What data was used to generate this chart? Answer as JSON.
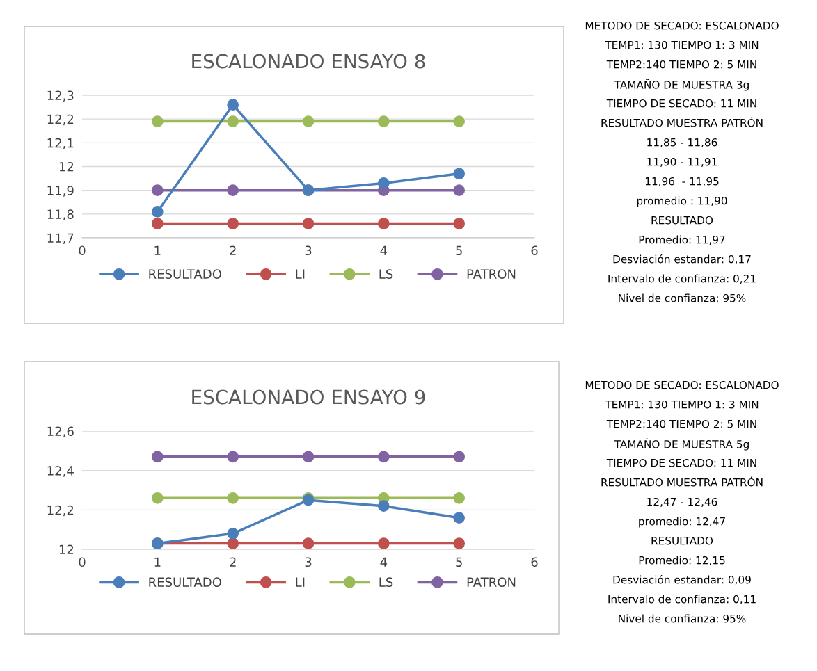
{
  "chart_data": [
    {
      "type": "line",
      "title": "ESCALONADO ENSAYO 8",
      "x": [
        1,
        2,
        3,
        4,
        5
      ],
      "xlim": [
        0,
        6
      ],
      "xticks": [
        0,
        1,
        2,
        3,
        4,
        5,
        6
      ],
      "ylim": [
        11.7,
        12.3
      ],
      "yticks": [
        {
          "value": 11.7,
          "label": "11,7"
        },
        {
          "value": 11.8,
          "label": "11,8"
        },
        {
          "value": 11.9,
          "label": "11,9"
        },
        {
          "value": 12,
          "label": "12"
        },
        {
          "value": 12.1,
          "label": "12,1"
        },
        {
          "value": 12.2,
          "label": "12,2"
        },
        {
          "value": 12.3,
          "label": "12,3"
        }
      ],
      "grid": "y",
      "legend": "bottom",
      "marker": "circle",
      "line_style": "solid",
      "series": [
        {
          "name": "RESULTADO",
          "color": "#4a7ebb",
          "values": [
            11.81,
            12.26,
            11.9,
            11.93,
            11.97
          ]
        },
        {
          "name": "LI",
          "color": "#c0504d",
          "values": [
            11.76,
            11.76,
            11.76,
            11.76,
            11.76
          ]
        },
        {
          "name": "LS",
          "color": "#9bbb59",
          "values": [
            12.19,
            12.19,
            12.19,
            12.19,
            12.19
          ]
        },
        {
          "name": "PATRON",
          "color": "#8064a2",
          "values": [
            11.9,
            11.9,
            11.9,
            11.9,
            11.9
          ]
        }
      ]
    },
    {
      "type": "other",
      "annotations": [
        "METODO DE SECADO: ESCALONADO",
        "TEMP1: 130 TIEMPO 1: 3 MIN",
        "TEMP2:140 TIEMPO 2: 5 MIN",
        "TAMAÑO DE MUESTRA 3g",
        "TIEMPO DE SECADO: 11 MIN",
        "RESULTADO MUESTRA PATRÓN",
        "11,85 - 11,86",
        "11,90 - 11,91",
        "11,96  - 11,95",
        "promedio : 11,90",
        "RESULTADO",
        "Promedio: 11,97",
        "Desviación estandar: 0,17",
        "Intervalo de confianza: 0,21",
        "Nivel de confianza: 95%"
      ]
    },
    {
      "type": "line",
      "title": "ESCALONADO ENSAYO 9",
      "x": [
        1,
        2,
        3,
        4,
        5
      ],
      "xlim": [
        0,
        6
      ],
      "xticks": [
        0,
        1,
        2,
        3,
        4,
        5,
        6
      ],
      "ylim": [
        12,
        12.6
      ],
      "yticks": [
        {
          "value": 12,
          "label": "12"
        },
        {
          "value": 12.2,
          "label": "12,2"
        },
        {
          "value": 12.4,
          "label": "12,4"
        },
        {
          "value": 12.6,
          "label": "12,6"
        }
      ],
      "grid": "y",
      "legend": "bottom",
      "marker": "circle",
      "line_style": "solid",
      "series": [
        {
          "name": "RESULTADO",
          "color": "#4a7ebb",
          "values": [
            12.03,
            12.08,
            12.25,
            12.22,
            12.16
          ]
        },
        {
          "name": "LI",
          "color": "#c0504d",
          "values": [
            12.03,
            12.03,
            12.03,
            12.03,
            12.03
          ]
        },
        {
          "name": "LS",
          "color": "#9bbb59",
          "values": [
            12.26,
            12.26,
            12.26,
            12.26,
            12.26
          ]
        },
        {
          "name": "PATRON",
          "color": "#8064a2",
          "values": [
            12.47,
            12.47,
            12.47,
            12.47,
            12.47
          ]
        }
      ]
    },
    {
      "type": "other",
      "annotations": [
        "METODO DE SECADO: ESCALONADO",
        "TEMP1: 130 TIEMPO 1: 3 MIN",
        "TEMP2:140 TIEMPO 2: 5 MIN",
        "TAMAÑO DE MUESTRA 5g",
        "TIEMPO DE SECADO: 11 MIN",
        "RESULTADO MUESTRA PATRÓN",
        "12,47 - 12,46",
        "promedio: 12,47",
        "RESULTADO",
        "Promedio: 12,15",
        "Desviación estandar: 0,09",
        "Intervalo de confianza: 0,11",
        "Nivel de confianza: 95%"
      ]
    }
  ]
}
